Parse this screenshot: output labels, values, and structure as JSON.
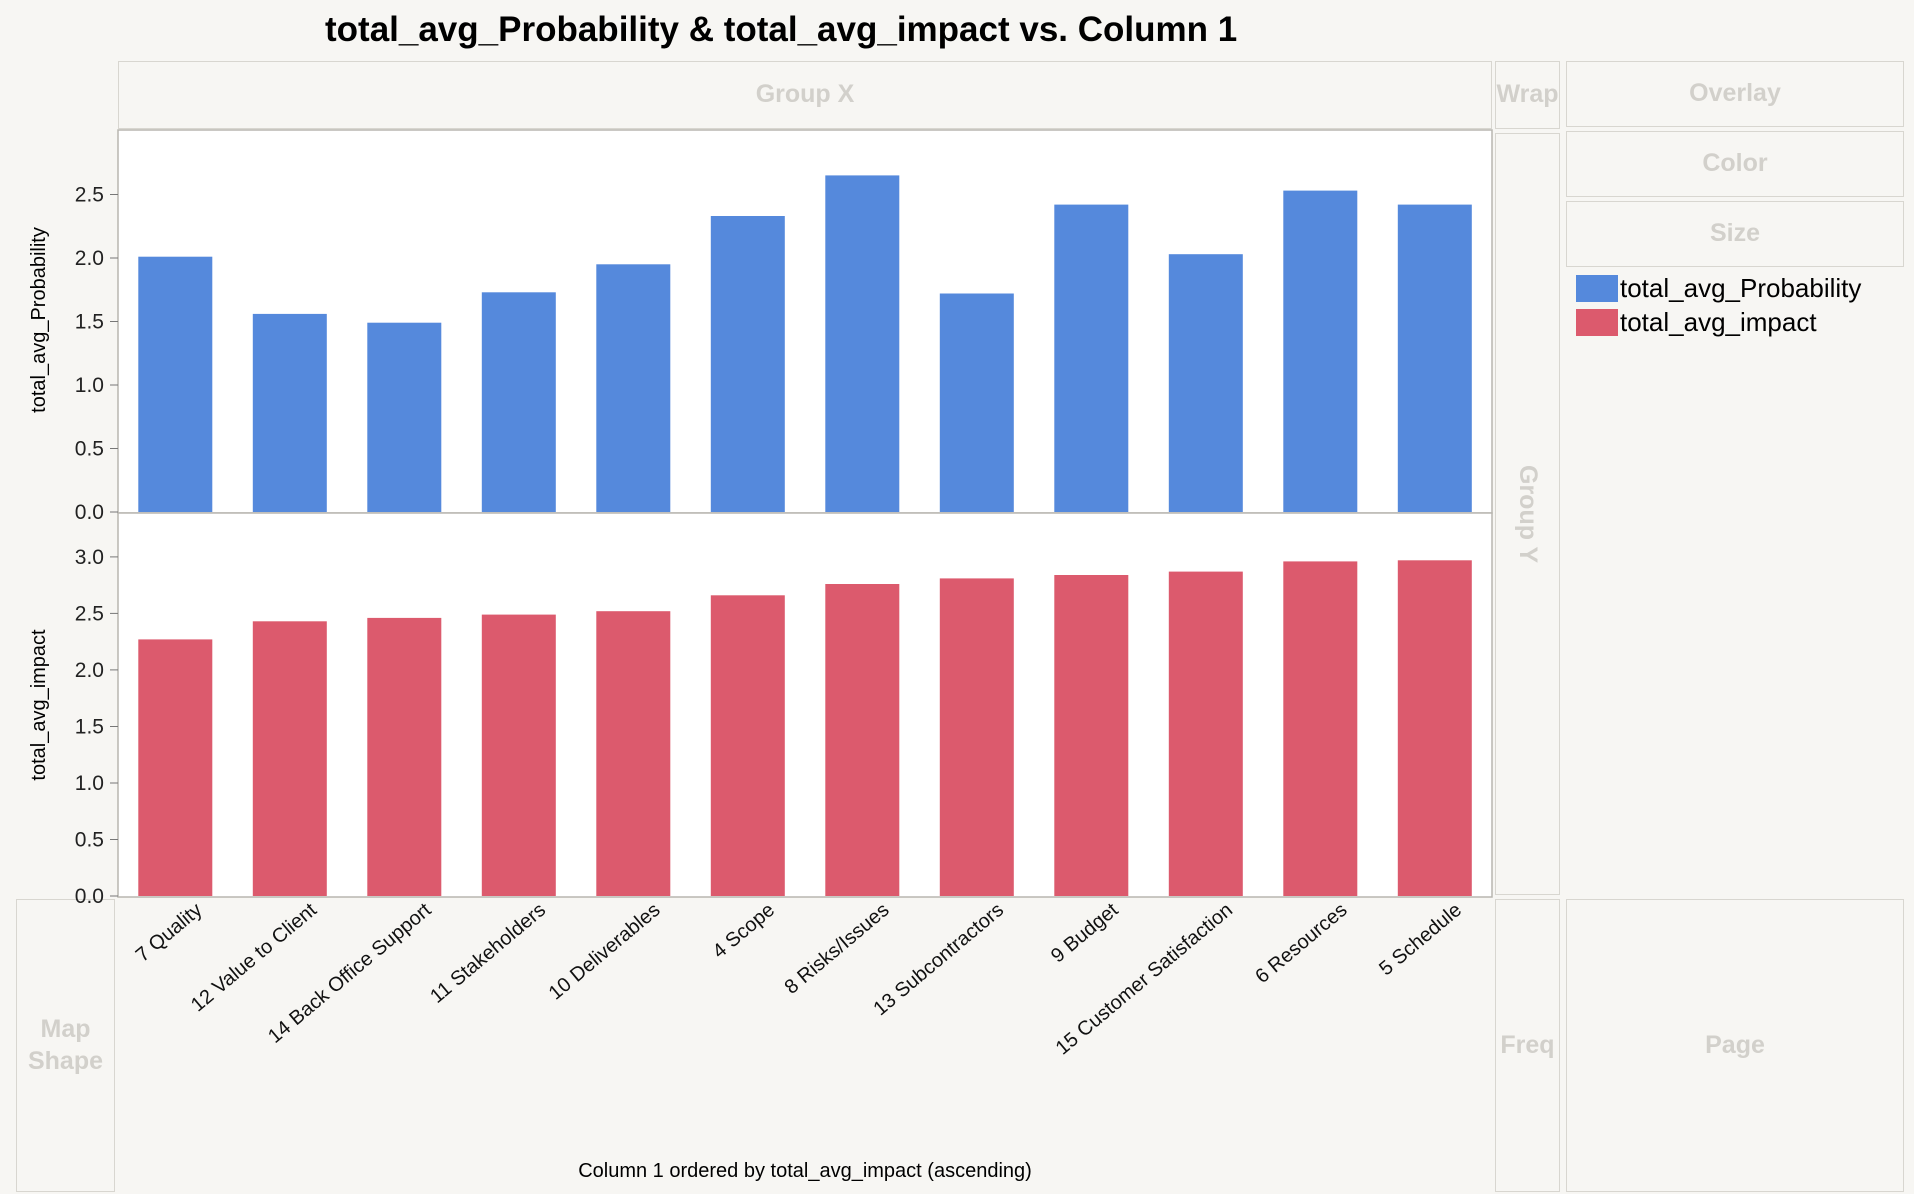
{
  "title": "total_avg_Probability & total_avg_impact vs. Column 1",
  "zones": {
    "group_x": "Group X",
    "wrap": "Wrap",
    "overlay": "Overlay",
    "color": "Color",
    "size": "Size",
    "group_y": "Group Y",
    "map_shape": "Map Shape",
    "freq": "Freq",
    "page": "Page"
  },
  "legend": [
    {
      "label": "total_avg_Probability",
      "color": "#5589dc"
    },
    {
      "label": "total_avg_impact",
      "color": "#dc5a6d"
    }
  ],
  "chart_data": {
    "type": "bar",
    "title": "total_avg_Probability & total_avg_impact vs. Column 1",
    "xlabel": "Column 1 ordered by total_avg_impact (ascending)",
    "categories": [
      "7 Quality",
      "12 Value to Client",
      "14 Back Office Support",
      "11 Stakeholders",
      "10 Deliverables",
      "4 Scope",
      "8 Risks/Issues",
      "13 Subcontractors",
      "9 Budget",
      "15 Customer Satisfaction",
      "6 Resources",
      "5 Schedule"
    ],
    "panels": [
      {
        "series_name": "total_avg_Probability",
        "ylabel": "total_avg_Probability",
        "color": "#5589dc",
        "ylim": [
          0,
          2.85
        ],
        "yticks": [
          "0.0",
          "0.5",
          "1.0",
          "1.5",
          "2.0",
          "2.5"
        ],
        "values": [
          2.01,
          1.56,
          1.49,
          1.73,
          1.95,
          2.33,
          2.65,
          1.72,
          2.42,
          2.03,
          2.53,
          2.42
        ]
      },
      {
        "series_name": "total_avg_impact",
        "ylabel": "total_avg_impact",
        "color": "#dc5a6d",
        "ylim": [
          0,
          3.3
        ],
        "yticks": [
          "0.0",
          "0.5",
          "1.0",
          "1.5",
          "2.0",
          "2.5",
          "3.0"
        ],
        "values": [
          2.27,
          2.43,
          2.46,
          2.49,
          2.52,
          2.66,
          2.76,
          2.81,
          2.84,
          2.87,
          2.96,
          2.97
        ]
      }
    ],
    "grid": false,
    "legend_position": "right"
  }
}
